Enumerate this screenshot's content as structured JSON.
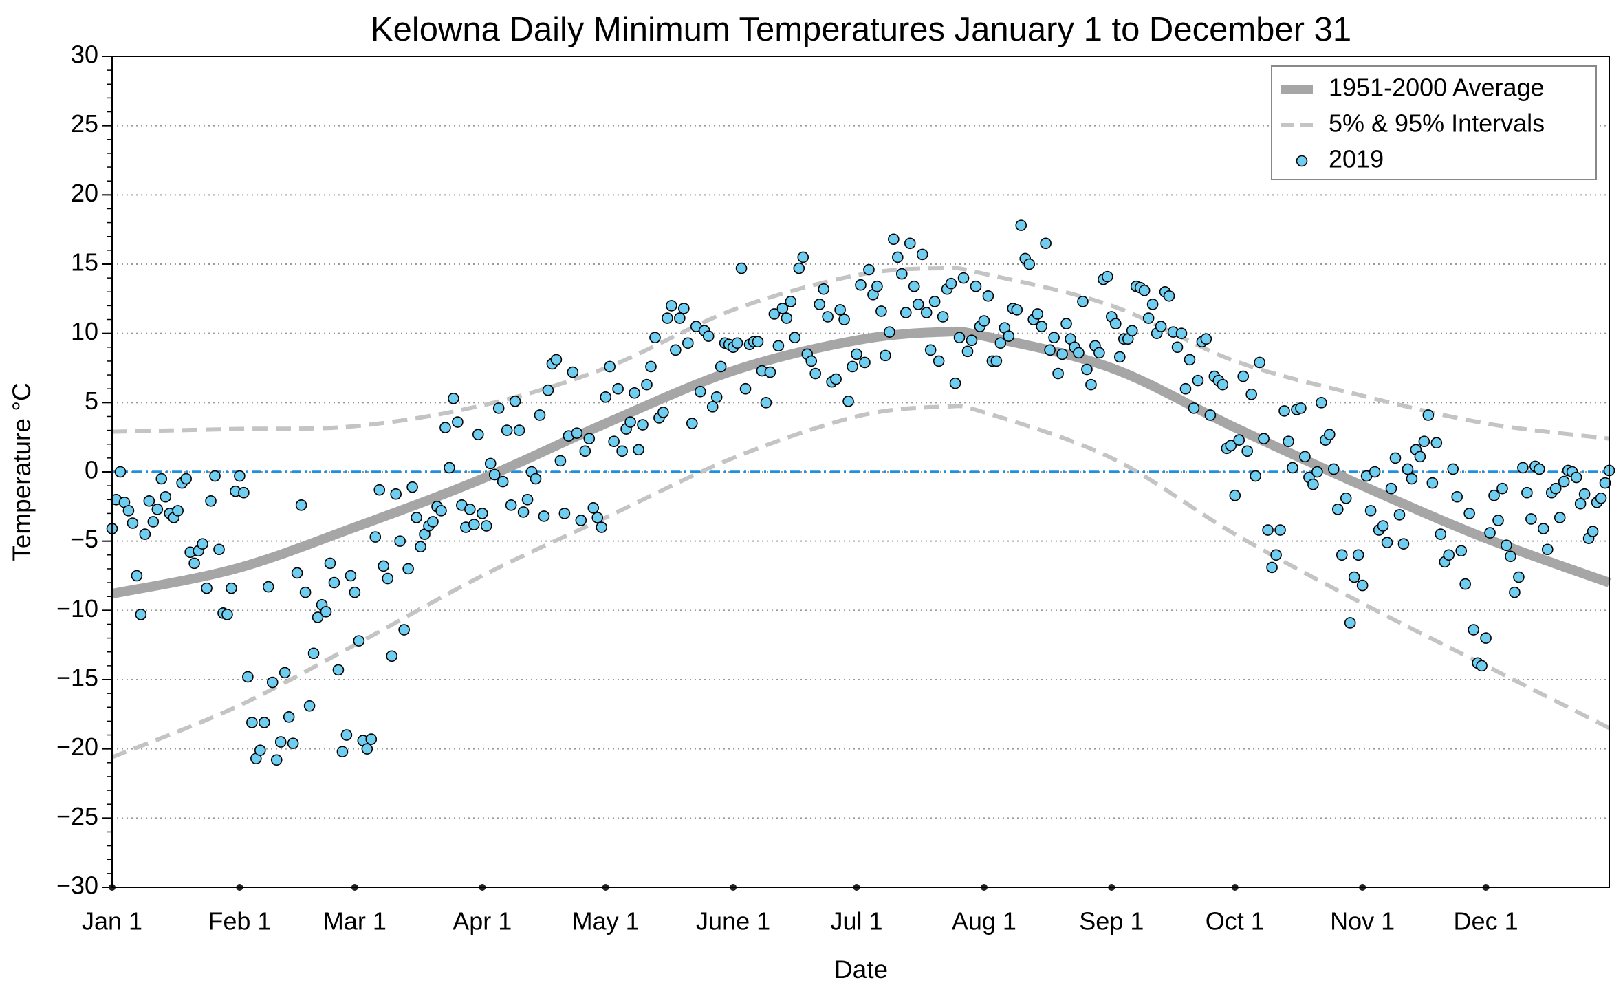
{
  "chart_data": {
    "type": "scatter",
    "title": "Kelowna Daily Minimum Temperatures January 1 to December 31",
    "xlabel": "Date",
    "ylabel": "Temperature °C",
    "xlim": [
      1,
      365
    ],
    "ylim": [
      -30,
      30
    ],
    "xticks": [
      {
        "value": 1,
        "label": "Jan 1"
      },
      {
        "value": 32,
        "label": "Feb 1"
      },
      {
        "value": 60,
        "label": "Mar 1"
      },
      {
        "value": 91,
        "label": "Apr 1"
      },
      {
        "value": 121,
        "label": "May 1"
      },
      {
        "value": 152,
        "label": "June 1"
      },
      {
        "value": 182,
        "label": "Jul 1"
      },
      {
        "value": 213,
        "label": "Aug 1"
      },
      {
        "value": 244,
        "label": "Sep 1"
      },
      {
        "value": 274,
        "label": "Oct 1"
      },
      {
        "value": 305,
        "label": "Nov 1"
      },
      {
        "value": 335,
        "label": "Dec 1"
      }
    ],
    "yticks": [
      {
        "value": -30,
        "label": "−30"
      },
      {
        "value": -25,
        "label": "−25"
      },
      {
        "value": -20,
        "label": "−20"
      },
      {
        "value": -15,
        "label": "−15"
      },
      {
        "value": -10,
        "label": "−10"
      },
      {
        "value": -5,
        "label": "−5"
      },
      0,
      5,
      10,
      15,
      20,
      25,
      30
    ],
    "grid": true,
    "legend": "upper right",
    "reference_line": {
      "y": 0,
      "color": "#1f8fe0"
    },
    "series": [
      {
        "name": "1951-2000 Average",
        "color": "#a6a6a6",
        "x": [
          1,
          31,
          60,
          91,
          121,
          152,
          182,
          203,
          213,
          244,
          274,
          305,
          335,
          365
        ],
        "values": [
          -8.8,
          -7,
          -4,
          -0.5,
          3.5,
          7.3,
          9.5,
          10.1,
          9.8,
          7.5,
          3.2,
          -1,
          -4.8,
          -8
        ]
      },
      {
        "name": "5% & 95% Intervals",
        "color": "#c4c4c4",
        "x": [
          1,
          31,
          60,
          91,
          121,
          152,
          182,
          203,
          213,
          244,
          274,
          305,
          335,
          365
        ],
        "lower": [
          -20.6,
          -17,
          -12.5,
          -7.5,
          -3.3,
          1,
          4,
          4.7,
          4.3,
          1,
          -4.5,
          -9.5,
          -14,
          -18.5
        ],
        "upper": [
          2.9,
          3.1,
          3.3,
          4.8,
          7.5,
          11.7,
          14.2,
          14.7,
          14.3,
          12,
          8,
          5.5,
          3.5,
          2.4
        ]
      },
      {
        "name": "2019",
        "color": "#6fcdf0",
        "x": [
          1,
          2,
          3,
          4,
          5,
          6,
          7,
          8,
          9,
          10,
          11,
          12,
          13,
          14,
          15,
          16,
          17,
          18,
          19,
          20,
          21,
          22,
          23,
          24,
          25,
          26,
          27,
          28,
          29,
          30,
          31,
          32,
          33,
          34,
          35,
          36,
          37,
          38,
          39,
          40,
          41,
          42,
          43,
          44,
          45,
          46,
          47,
          48,
          49,
          50,
          51,
          52,
          53,
          54,
          55,
          56,
          57,
          58,
          59,
          60,
          61,
          62,
          63,
          64,
          65,
          66,
          67,
          68,
          69,
          70,
          71,
          72,
          73,
          74,
          75,
          76,
          77,
          78,
          79,
          80,
          81,
          82,
          83,
          84,
          85,
          86,
          87,
          88,
          89,
          90,
          91,
          92,
          93,
          94,
          95,
          96,
          97,
          98,
          99,
          100,
          101,
          102,
          103,
          104,
          105,
          106,
          107,
          108,
          109,
          110,
          111,
          112,
          113,
          114,
          115,
          116,
          117,
          118,
          119,
          120,
          121,
          122,
          123,
          124,
          125,
          126,
          127,
          128,
          129,
          130,
          131,
          132,
          133,
          134,
          135,
          136,
          137,
          138,
          139,
          140,
          141,
          142,
          143,
          144,
          145,
          146,
          147,
          148,
          149,
          150,
          151,
          152,
          153,
          154,
          155,
          156,
          157,
          158,
          159,
          160,
          161,
          162,
          163,
          164,
          165,
          166,
          167,
          168,
          169,
          170,
          171,
          172,
          173,
          174,
          175,
          176,
          177,
          178,
          179,
          180,
          181,
          182,
          183,
          184,
          185,
          186,
          187,
          188,
          189,
          190,
          191,
          192,
          193,
          194,
          195,
          196,
          197,
          198,
          199,
          200,
          201,
          202,
          203,
          204,
          205,
          206,
          207,
          208,
          209,
          210,
          211,
          212,
          213,
          214,
          215,
          216,
          217,
          218,
          219,
          220,
          221,
          222,
          223,
          224,
          225,
          226,
          227,
          228,
          229,
          230,
          231,
          232,
          233,
          234,
          235,
          236,
          237,
          238,
          239,
          240,
          241,
          242,
          243,
          244,
          245,
          246,
          247,
          248,
          249,
          250,
          251,
          252,
          253,
          254,
          255,
          256,
          257,
          258,
          259,
          260,
          261,
          262,
          263,
          264,
          265,
          266,
          267,
          268,
          269,
          270,
          271,
          272,
          273,
          274,
          275,
          276,
          277,
          278,
          279,
          280,
          281,
          282,
          283,
          284,
          285,
          286,
          287,
          288,
          289,
          290,
          291,
          292,
          293,
          294,
          295,
          296,
          297,
          298,
          299,
          300,
          301,
          302,
          303,
          304,
          305,
          306,
          307,
          308,
          309,
          310,
          311,
          312,
          313,
          314,
          315,
          316,
          317,
          318,
          319,
          320,
          321,
          322,
          323,
          324,
          325,
          326,
          327,
          328,
          329,
          330,
          331,
          332,
          333,
          334,
          335,
          336,
          337,
          338,
          339,
          340,
          341,
          342,
          343,
          344,
          345,
          346,
          347,
          348,
          349,
          350,
          351,
          352,
          353,
          354,
          355,
          356,
          357,
          358,
          359,
          360,
          361,
          362,
          363,
          364,
          365
        ],
        "values": [
          -4.1,
          -2,
          0,
          -2.2,
          -2.8,
          -3.7,
          -7.5,
          -10.3,
          -4.5,
          -2.1,
          -3.6,
          -2.7,
          -0.5,
          -1.8,
          -3,
          -3.3,
          -2.8,
          -0.8,
          -0.5,
          -5.8,
          -6.6,
          -5.7,
          -5.2,
          -8.4,
          -2.1,
          -0.3,
          -5.6,
          -10.2,
          -10.3,
          -8.4,
          -1.4,
          -0.3,
          -1.5,
          -14.8,
          -18.1,
          -20.7,
          -20.1,
          -18.1,
          -8.3,
          -15.2,
          -20.8,
          -19.5,
          -14.5,
          -17.7,
          -19.6,
          -7.3,
          -2.4,
          -8.7,
          -16.9,
          -13.1,
          -10.5,
          -9.6,
          -10.1,
          -6.6,
          -8,
          -14.3,
          -20.2,
          -19,
          -7.5,
          -8.7,
          -12.2,
          -19.4,
          -20,
          -19.3,
          -4.7,
          -1.3,
          -6.8,
          -7.7,
          -13.3,
          -1.6,
          -5,
          -11.4,
          -7,
          -1.1,
          -3.3,
          -5.4,
          -4.5,
          -3.9,
          -3.6,
          -2.5,
          -2.8,
          3.2,
          0.3,
          5.3,
          3.6,
          -2.4,
          -4,
          -2.7,
          -3.8,
          2.7,
          -3,
          -3.9,
          0.6,
          -0.2,
          4.6,
          -0.7,
          3,
          -2.4,
          5.1,
          3,
          -2.9,
          -2,
          0,
          -0.5,
          4.1,
          -3.2,
          5.9,
          7.8,
          8.1,
          0.8,
          -3,
          2.6,
          7.2,
          2.8,
          -3.5,
          1.5,
          2.4,
          -2.6,
          -3.3,
          -4,
          5.4,
          7.6,
          2.2,
          6,
          1.5,
          3.1,
          3.6,
          5.7,
          1.6,
          3.4,
          6.3,
          7.6,
          9.7,
          3.9,
          4.3,
          11.1,
          12,
          8.8,
          11.1,
          11.8,
          9.3,
          3.5,
          10.5,
          5.8,
          10.2,
          9.8,
          4.7,
          5.4,
          7.6,
          9.3,
          9.2,
          9,
          9.3,
          14.7,
          6,
          9.2,
          9.4,
          9.4,
          7.3,
          5,
          7.2,
          11.4,
          9.1,
          11.8,
          11.1,
          12.3,
          9.7,
          14.7,
          15.5,
          8.5,
          8,
          7.1,
          12.1,
          13.2,
          11.2,
          6.5,
          6.7,
          11.7,
          11,
          5.1,
          7.6,
          8.5,
          13.5,
          7.9,
          14.6,
          12.8,
          13.4,
          11.6,
          8.4,
          10.1,
          16.8,
          15.5,
          14.3,
          11.5,
          16.5,
          13.4,
          12.1,
          15.7,
          11.5,
          8.8,
          12.3,
          8,
          11.2,
          13.2,
          13.6,
          6.4,
          9.7,
          14,
          8.7,
          9.5,
          13.4,
          10.5,
          10.9,
          12.7,
          8,
          8,
          9.3,
          10.4,
          9.8,
          11.8,
          11.7,
          17.8,
          15.4,
          15,
          11,
          11.4,
          10.5,
          16.5,
          8.8,
          9.7,
          7.1,
          8.5,
          10.7,
          9.6,
          9,
          8.6,
          12.3,
          7.4,
          6.3,
          9.1,
          8.6,
          13.9,
          14.1,
          11.2,
          10.7,
          8.3,
          9.6,
          9.6,
          10.2,
          13.4,
          13.3,
          13.1,
          11.1,
          12.1,
          10,
          10.5,
          13,
          12.7,
          10.1,
          9,
          10,
          6,
          8.1,
          4.6,
          6.6,
          9.4,
          9.6,
          4.1,
          6.9,
          6.6,
          6.3,
          1.7,
          1.9,
          -1.7,
          2.3,
          6.9,
          1.5,
          5.6,
          -0.3,
          7.9,
          2.4,
          -4.2,
          -6.9,
          -6,
          -4.2,
          4.4,
          2.2,
          0.3,
          4.5,
          4.6,
          1.1,
          -0.4,
          -0.9,
          0,
          5,
          2.3,
          2.7,
          0.2,
          -2.7,
          -6,
          -1.9,
          -10.9,
          -7.6,
          -6,
          -8.2,
          -0.3,
          -2.8,
          0,
          -4.2,
          -3.9,
          -5.1,
          -1.2,
          1,
          -3.1,
          -5.2,
          0.2,
          -0.5,
          1.6,
          1.1,
          2.2,
          4.1,
          -0.8,
          2.1,
          -4.5,
          -6.5,
          -6,
          0.2,
          -1.8,
          -5.7,
          -8.1,
          -3,
          -11.4,
          -13.8,
          -14,
          -12,
          -4.4,
          -1.7,
          -3.5,
          -1.2,
          -5.3,
          -6.1,
          -8.7,
          -7.6,
          0.3,
          -1.5,
          -3.4,
          0.4,
          0.2,
          -4.1,
          -5.6,
          -1.5,
          -1.2,
          -3.3,
          -0.7,
          0.1,
          0,
          -0.4,
          -2.3,
          -1.6,
          -4.8,
          -4.3,
          -2.2,
          -1.9,
          -0.8,
          0.1
        ]
      }
    ]
  }
}
